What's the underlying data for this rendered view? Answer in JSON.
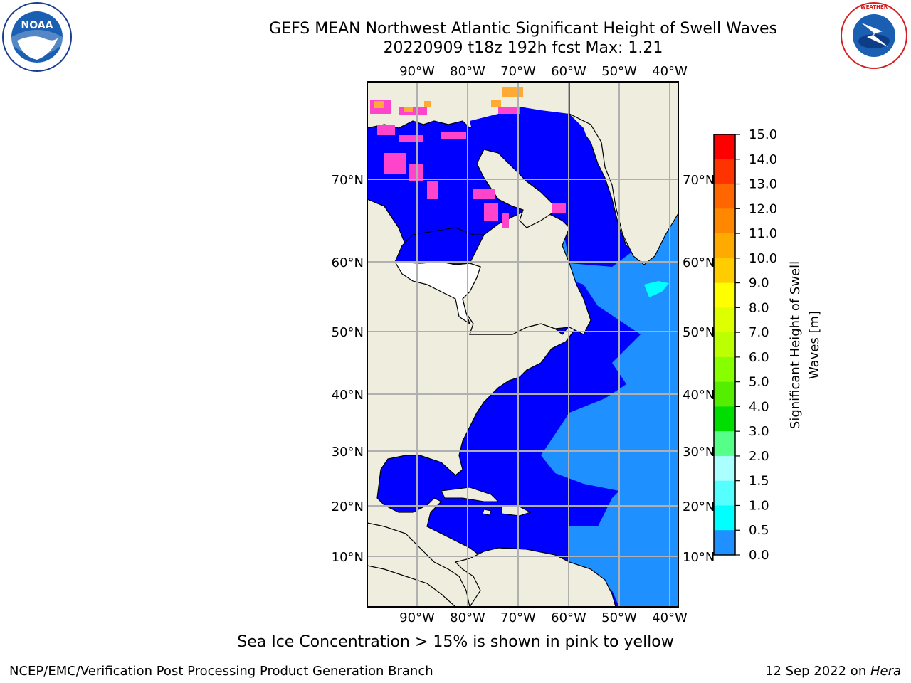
{
  "header": {
    "title_line1": "GEFS MEAN Northwest Atlantic Significant Height of Swell Waves",
    "title_line2": "20220909 t18z 192h fcst   Max: 1.21"
  },
  "logos": {
    "left": "NOAA",
    "left_ring_text": "NATIONAL OCEANIC AND ATMOSPHERIC ADMINISTRATION · U.S. DEPARTMENT OF COMMERCE",
    "right_ring_text": "NATIONAL WEATHER SERVICE"
  },
  "map": {
    "lon_labels": [
      "90°W",
      "80°W",
      "70°W",
      "60°W",
      "50°W",
      "40°W"
    ],
    "lat_labels": [
      "70°N",
      "60°N",
      "50°N",
      "40°N",
      "30°N",
      "20°N",
      "10°N"
    ],
    "colors": {
      "land": "#efedde",
      "ocean_low": "#0000ff",
      "ocean_mid": "#1e90ff",
      "ocean_high": "#00ffff",
      "grid": "#b0b0b0"
    }
  },
  "colorbar": {
    "label_line1": "Significant Height of Swell",
    "label_line2": "Waves [m]",
    "ticks": [
      "15.0",
      "14.0",
      "13.0",
      "12.0",
      "11.0",
      "10.0",
      "9.0",
      "8.0",
      "7.0",
      "6.0",
      "5.0",
      "4.0",
      "3.0",
      "2.0",
      "1.5",
      "1.0",
      "0.5",
      "0.0"
    ],
    "colors": [
      "#ff0000",
      "#ff3300",
      "#ff6600",
      "#ff8800",
      "#ffaa00",
      "#ffcc00",
      "#ffff00",
      "#ddff00",
      "#bbff00",
      "#88ff00",
      "#55ee00",
      "#00dd00",
      "#55ff88",
      "#aaffff",
      "#55ffff",
      "#00ffff",
      "#1e90ff",
      "#0000ff"
    ]
  },
  "note": "Sea Ice Concentration > 15% is shown in pink to yellow",
  "footer": {
    "left": "NCEP/EMC/Verification Post Processing Product Generation Branch",
    "right_date": "12 Sep 2022 on ",
    "right_machine": "Hera"
  }
}
